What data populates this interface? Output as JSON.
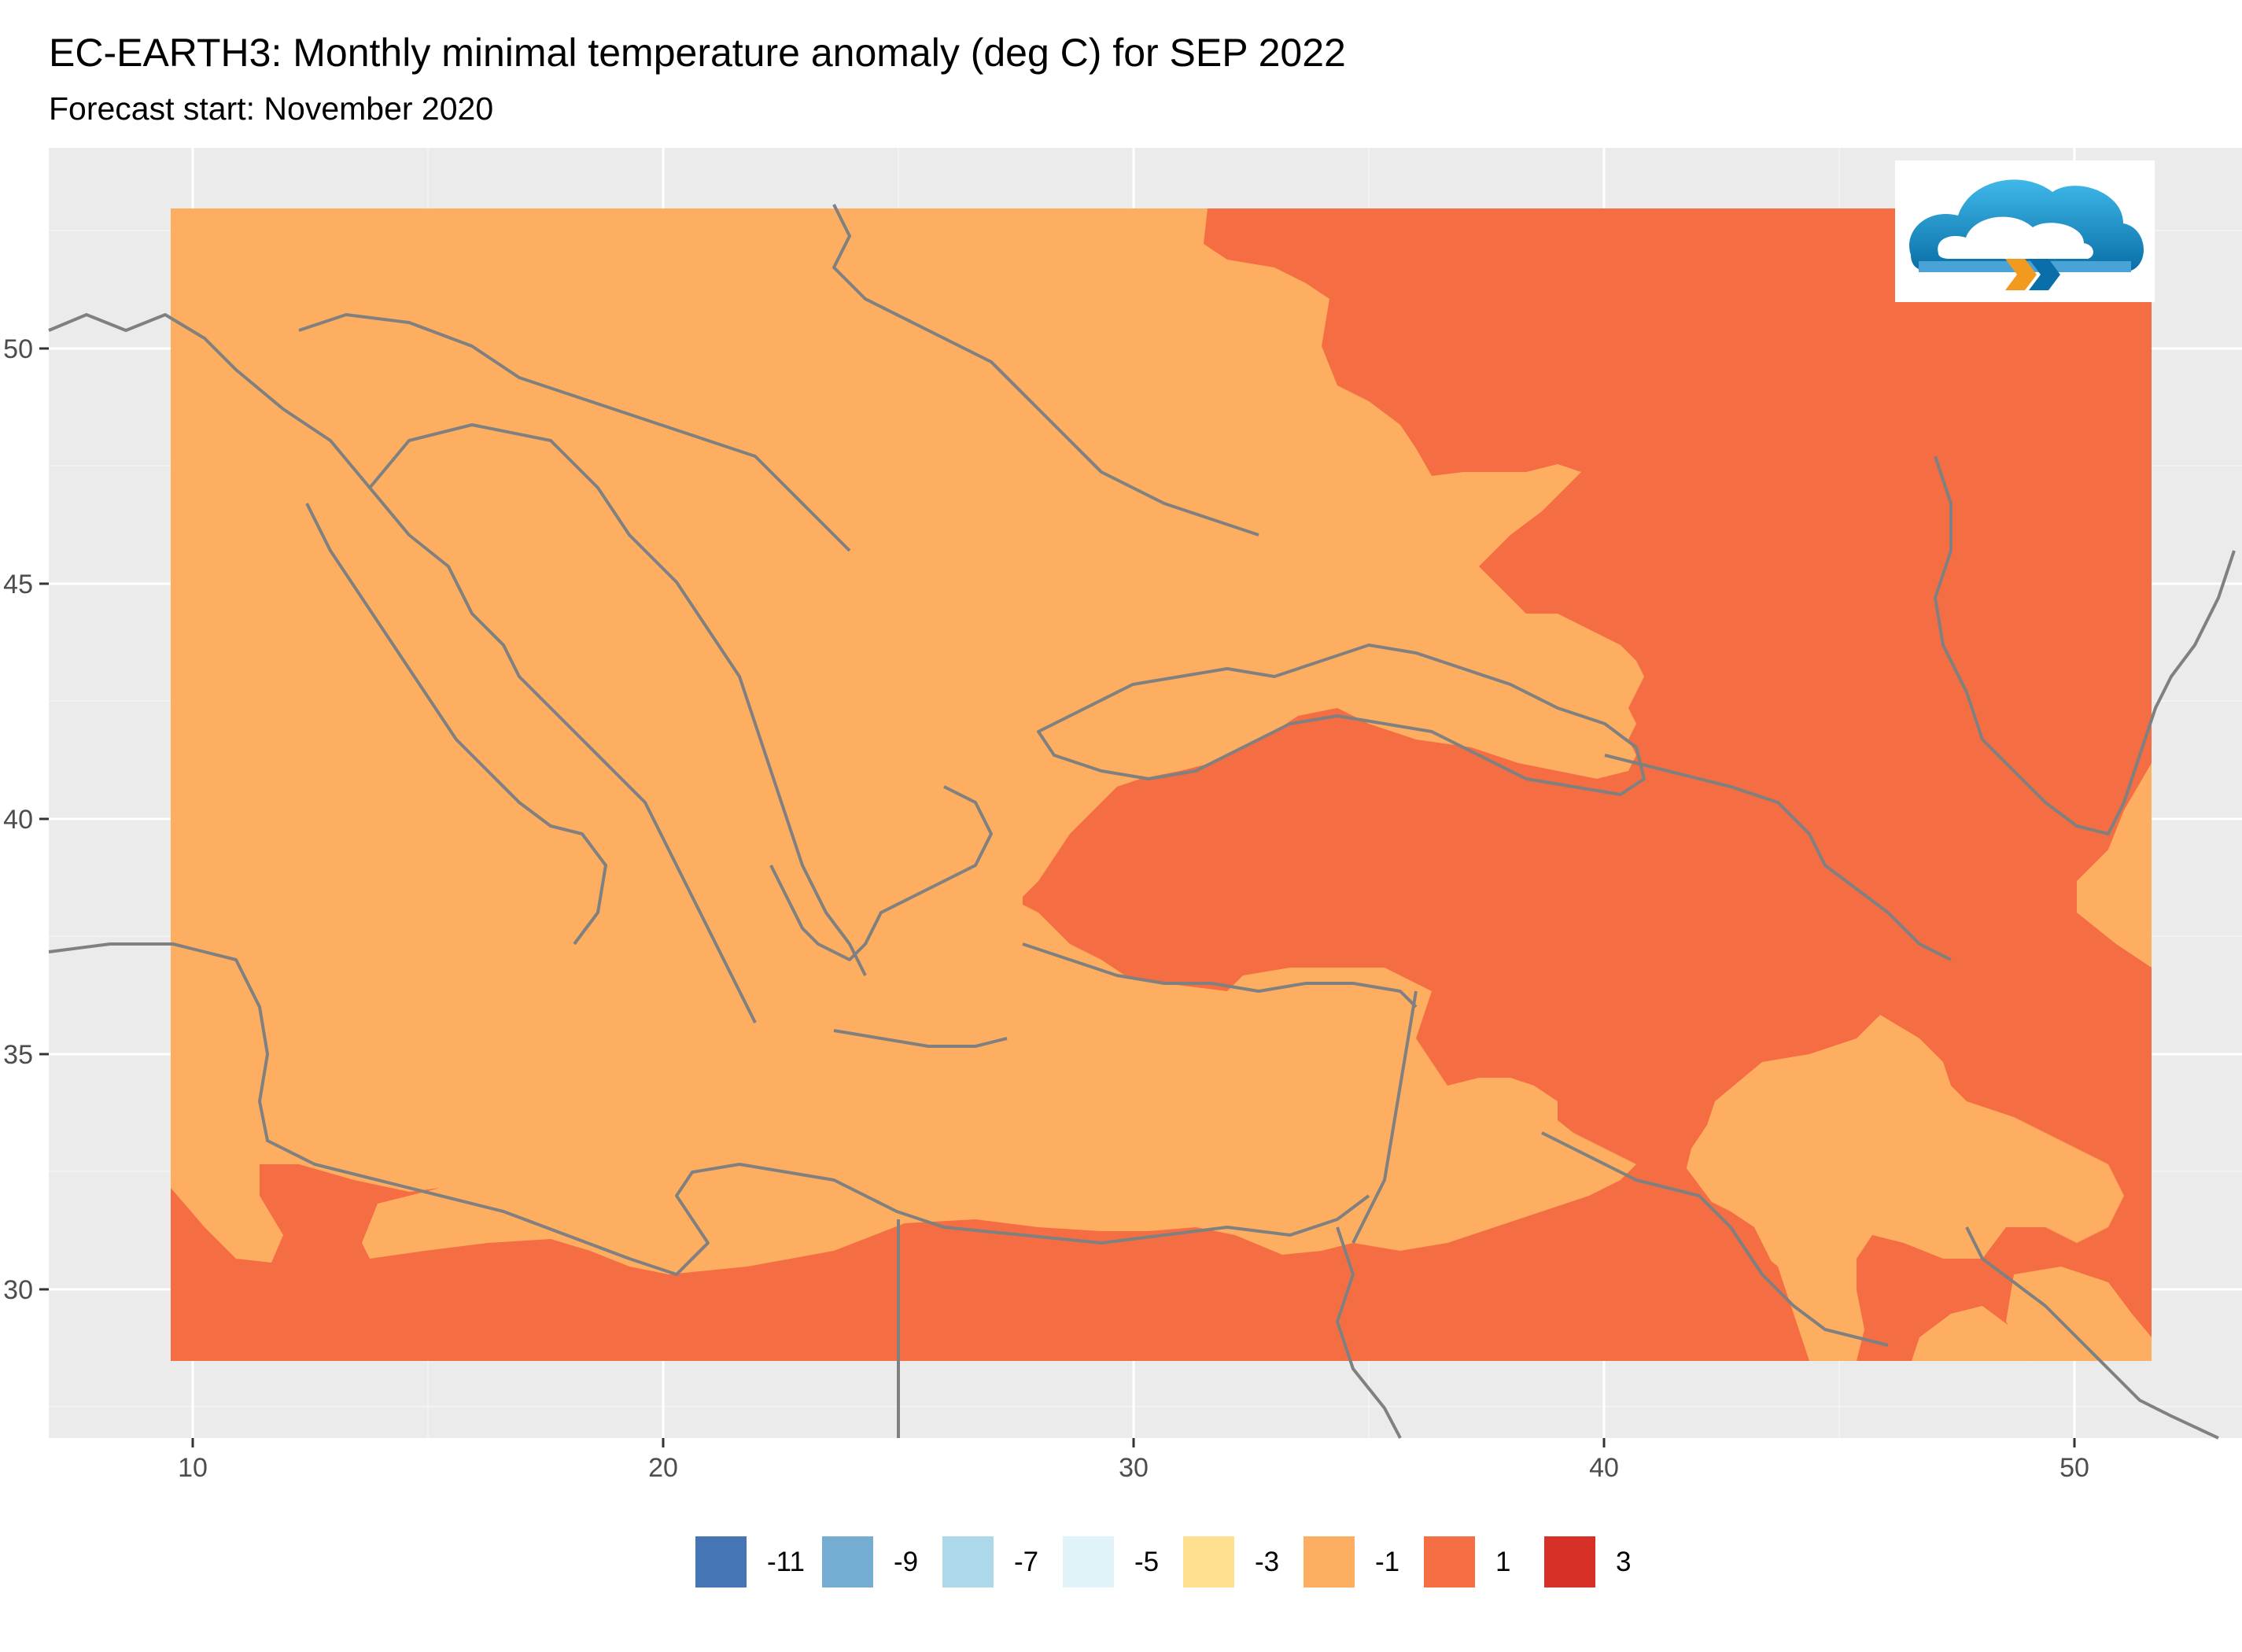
{
  "title": "EC-EARTH3: Monthly minimal temperature anomaly (deg C) for SEP 2022",
  "subtitle": "Forecast start: November 2020",
  "axes": {
    "x_ticks": [
      "10",
      "20",
      "30",
      "40",
      "50"
    ],
    "y_ticks": [
      "50",
      "45",
      "40",
      "35",
      "30"
    ]
  },
  "legend": {
    "items": [
      {
        "label": "-11",
        "color": "#4575b4"
      },
      {
        "label": "-9",
        "color": "#74add1"
      },
      {
        "label": "-7",
        "color": "#abd9e9"
      },
      {
        "label": "-5",
        "color": "#e0f3f8"
      },
      {
        "label": "-3",
        "color": "#fee090"
      },
      {
        "label": "-1",
        "color": "#fdae61"
      },
      {
        "label": "1",
        "color": "#f46d43"
      },
      {
        "label": "3",
        "color": "#d73027"
      }
    ]
  },
  "colors": {
    "panel_bg": "#ebebeb",
    "grid": "#ffffff",
    "border": "#808080"
  },
  "logo": {
    "icon": "cloud-logo-icon"
  }
}
